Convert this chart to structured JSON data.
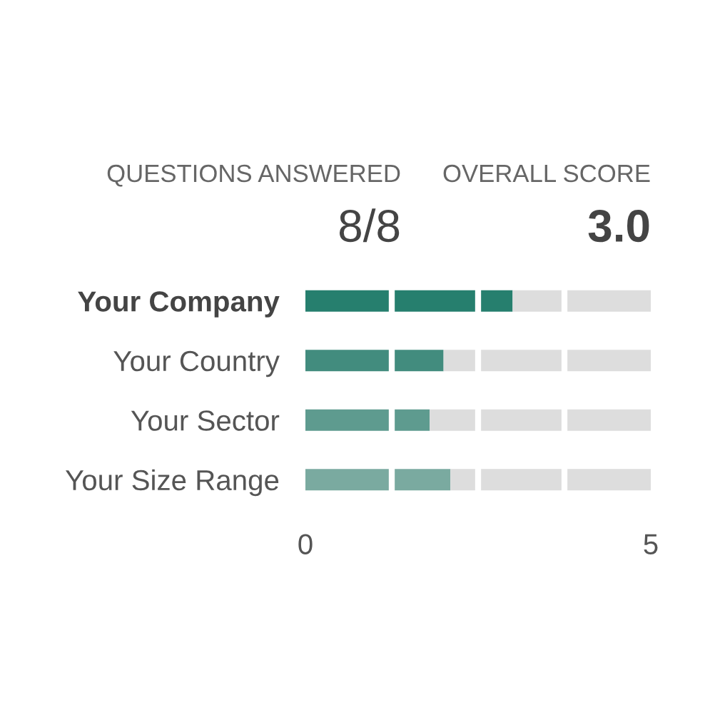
{
  "chart_data": {
    "type": "bar",
    "orientation": "horizontal",
    "stacked": true,
    "categories": [
      "Your Company",
      "Your Country",
      "Your Sector",
      "Your Size Range"
    ],
    "series": [
      {
        "colors": [
          "#267f6e",
          "#428c7e",
          "#5e9b8f",
          "#7aaaa0"
        ],
        "values": [
          3.0,
          2.0,
          1.8,
          2.1
        ]
      },
      {
        "color": "#dddddd",
        "values": [
          2.0,
          3.0,
          3.2,
          2.9
        ]
      }
    ],
    "xlim": [
      0,
      5
    ],
    "xticks": [
      0,
      5
    ],
    "ref_lines": [
      {
        "axis": "x",
        "value": 1.25,
        "color": "#ffffff"
      },
      {
        "axis": "x",
        "value": 2.5,
        "color": "#ffffff"
      },
      {
        "axis": "x",
        "value": 3.75,
        "color": "#ffffff"
      }
    ],
    "annotations": [
      "QUESTIONS ANSWERED",
      "8/8",
      "OVERALL SCORE",
      "3.0"
    ]
  }
}
